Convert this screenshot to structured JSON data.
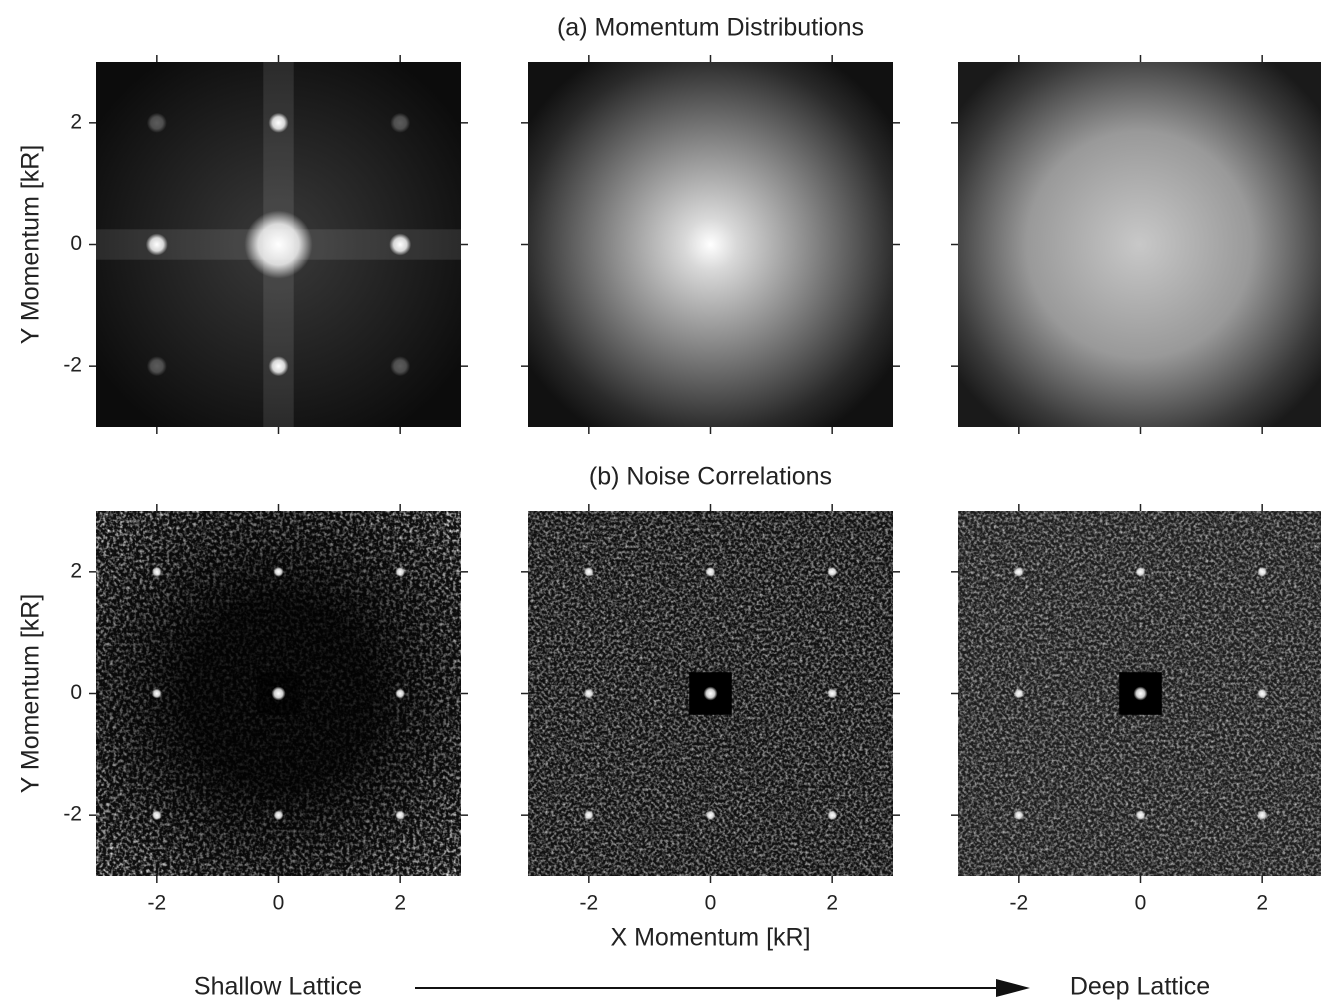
{
  "chart_data": [
    {
      "type": "image",
      "ylabel": "Y Momentum [kR]",
      "xlim": [
        -3,
        3
      ],
      "ylim": [
        -3,
        3
      ],
      "xticks": [
        -2,
        0,
        2
      ],
      "yticks": [
        -2,
        0,
        2
      ]
    },
    {
      "type": "image",
      "title": "(a) Momentum Distributions",
      "xlim": [
        -3,
        3
      ],
      "ylim": [
        -3,
        3
      ],
      "xticks": [
        -2,
        0,
        2
      ],
      "yticks": [
        -2,
        0,
        2
      ]
    },
    {
      "type": "image",
      "xlim": [
        -3,
        3
      ],
      "ylim": [
        -3,
        3
      ],
      "xticks": [
        -2,
        0,
        2
      ],
      "yticks": [
        -2,
        0,
        2
      ]
    },
    {
      "type": "image",
      "ylabel": "Y Momentum [kR]",
      "xlim": [
        -3,
        3
      ],
      "ylim": [
        -3,
        3
      ],
      "xticks": [
        -2,
        0,
        2
      ],
      "yticks": [
        -2,
        0,
        2
      ]
    },
    {
      "type": "image",
      "title": "(b) Noise Correlations",
      "xlabel": "X Momentum [kR]",
      "xlim": [
        -3,
        3
      ],
      "ylim": [
        -3,
        3
      ],
      "xticks": [
        -2,
        0,
        2
      ],
      "yticks": [
        -2,
        0,
        2
      ]
    },
    {
      "type": "image",
      "xlim": [
        -3,
        3
      ],
      "ylim": [
        -3,
        3
      ],
      "xticks": [
        -2,
        0,
        2
      ],
      "yticks": [
        -2,
        0,
        2
      ]
    }
  ],
  "annotations": {
    "left": "Shallow Lattice",
    "right": "Deep Lattice"
  }
}
